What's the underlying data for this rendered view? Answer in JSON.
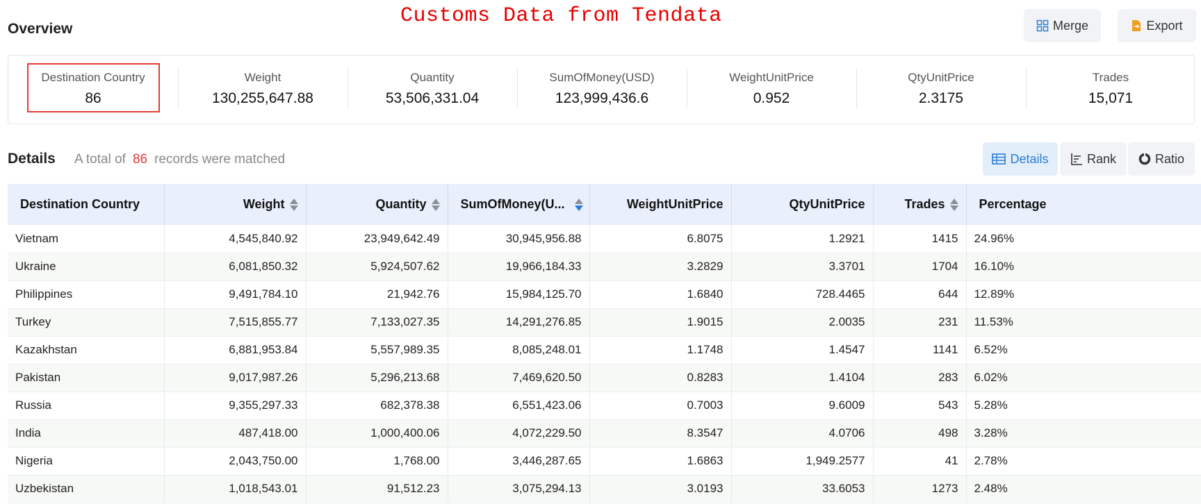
{
  "watermark": "Customs Data from Tendata",
  "overview": {
    "title": "Overview",
    "merge_label": "Merge",
    "export_label": "Export",
    "stats": [
      {
        "label": "Destination Country",
        "value": "86"
      },
      {
        "label": "Weight",
        "value": "130,255,647.88"
      },
      {
        "label": "Quantity",
        "value": "53,506,331.04"
      },
      {
        "label": "SumOfMoney(USD)",
        "value": "123,999,436.6"
      },
      {
        "label": "WeightUnitPrice",
        "value": "0.952"
      },
      {
        "label": "QtyUnitPrice",
        "value": "2.3175"
      },
      {
        "label": "Trades",
        "value": "15,071"
      }
    ]
  },
  "details": {
    "title": "Details",
    "count_prefix": "A total of",
    "count": "86",
    "count_suffix": "records were matched",
    "tabs": {
      "details": "Details",
      "rank": "Rank",
      "ratio": "Ratio"
    }
  },
  "table": {
    "headers": [
      "Destination Country",
      "Weight",
      "Quantity",
      "SumOfMoney(U...",
      "WeightUnitPrice",
      "QtyUnitPrice",
      "Trades",
      "Percentage"
    ],
    "rows": [
      [
        "Vietnam",
        "4,545,840.92",
        "23,949,642.49",
        "30,945,956.88",
        "6.8075",
        "1.2921",
        "1415",
        "24.96%"
      ],
      [
        "Ukraine",
        "6,081,850.32",
        "5,924,507.62",
        "19,966,184.33",
        "3.2829",
        "3.3701",
        "1704",
        "16.10%"
      ],
      [
        "Philippines",
        "9,491,784.10",
        "21,942.76",
        "15,984,125.70",
        "1.6840",
        "728.4465",
        "644",
        "12.89%"
      ],
      [
        "Turkey",
        "7,515,855.77",
        "7,133,027.35",
        "14,291,276.85",
        "1.9015",
        "2.0035",
        "231",
        "11.53%"
      ],
      [
        "Kazakhstan",
        "6,881,953.84",
        "5,557,989.35",
        "8,085,248.01",
        "1.1748",
        "1.4547",
        "1141",
        "6.52%"
      ],
      [
        "Pakistan",
        "9,017,987.26",
        "5,296,213.68",
        "7,469,620.50",
        "0.8283",
        "1.4104",
        "283",
        "6.02%"
      ],
      [
        "Russia",
        "9,355,297.33",
        "682,378.38",
        "6,551,423.06",
        "0.7003",
        "9.6009",
        "543",
        "5.28%"
      ],
      [
        "India",
        "487,418.00",
        "1,000,400.06",
        "4,072,229.50",
        "8.3547",
        "4.0706",
        "498",
        "3.28%"
      ],
      [
        "Nigeria",
        "2,043,750.00",
        "1,768.00",
        "3,446,287.65",
        "1.6863",
        "1,949.2577",
        "41",
        "2.78%"
      ],
      [
        "Uzbekistan",
        "1,018,543.01",
        "91,512.23",
        "3,075,294.13",
        "3.0193",
        "33.6053",
        "1273",
        "2.48%"
      ]
    ]
  },
  "colors": {
    "accent": "#2a7cd6",
    "highlight": "#e53935",
    "watermark": "#e60000",
    "header_bg": "#e9f0fc"
  }
}
